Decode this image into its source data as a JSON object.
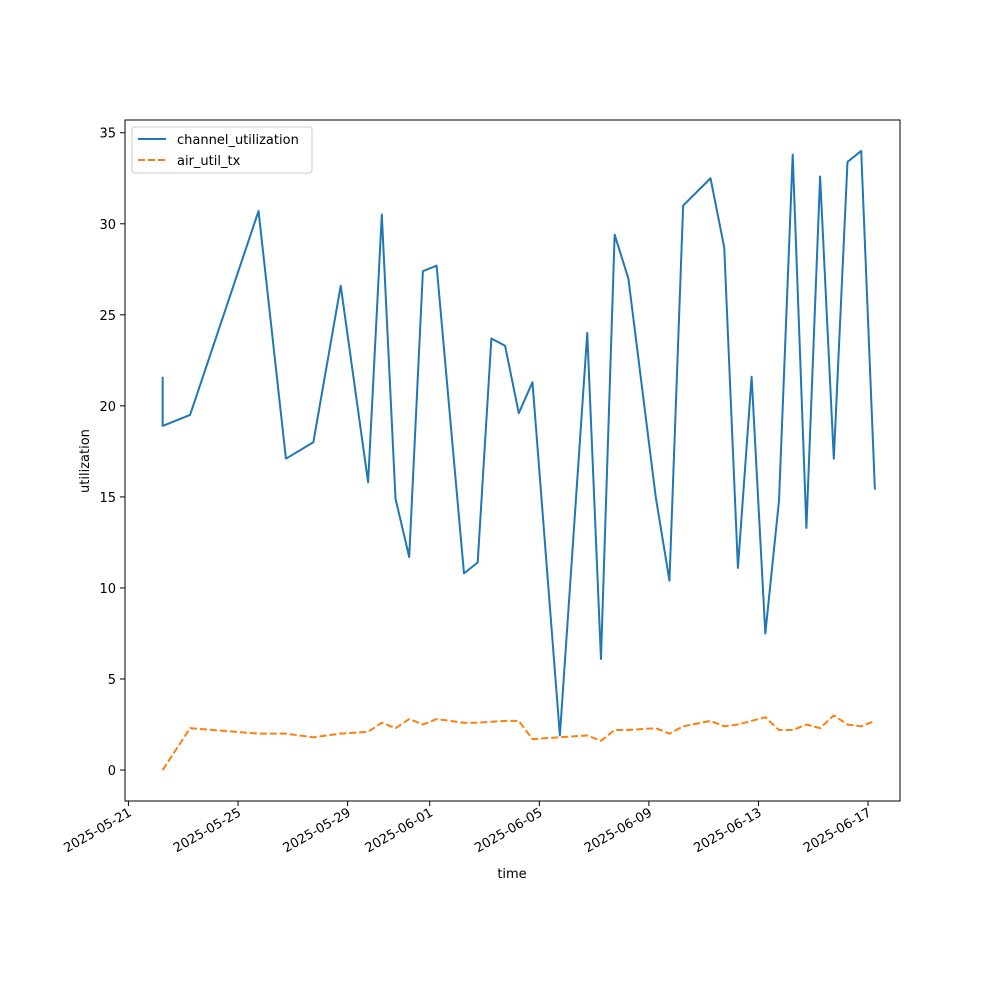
{
  "chart_data": {
    "type": "line",
    "title": "",
    "xlabel": "time",
    "ylabel": "utilization",
    "x_type": "date",
    "xlim": [
      "2025-05-20T21:00",
      "2025-06-18T04:00"
    ],
    "ylim": [
      -1.7,
      35.7
    ],
    "x_ticks": [
      "2025-05-21",
      "2025-05-25",
      "2025-05-29",
      "2025-06-01",
      "2025-06-05",
      "2025-06-09",
      "2025-06-13",
      "2025-06-17"
    ],
    "y_ticks": [
      0,
      5,
      10,
      15,
      20,
      25,
      30,
      35
    ],
    "grid": false,
    "legend_position": "upper-left",
    "series": [
      {
        "name": "channel_utilization",
        "color": "#1f77b4",
        "style": "solid",
        "points": [
          [
            "2025-05-22T06:00",
            21.6
          ],
          [
            "2025-05-22T06:00",
            18.9
          ],
          [
            "2025-05-23T06:00",
            19.5
          ],
          [
            "2025-05-25T18:00",
            30.7
          ],
          [
            "2025-05-26T18:00",
            17.1
          ],
          [
            "2025-05-27T18:00",
            18.0
          ],
          [
            "2025-05-28T18:00",
            26.6
          ],
          [
            "2025-05-29T18:00",
            15.8
          ],
          [
            "2025-05-30T06:00",
            30.5
          ],
          [
            "2025-05-30T18:00",
            14.9
          ],
          [
            "2025-05-31T06:00",
            11.7
          ],
          [
            "2025-05-31T18:00",
            27.4
          ],
          [
            "2025-06-01T06:00",
            27.7
          ],
          [
            "2025-06-02T06:00",
            10.8
          ],
          [
            "2025-06-02T18:00",
            11.4
          ],
          [
            "2025-06-03T06:00",
            23.7
          ],
          [
            "2025-06-03T18:00",
            23.3
          ],
          [
            "2025-06-04T06:00",
            19.6
          ],
          [
            "2025-06-04T18:00",
            21.3
          ],
          [
            "2025-06-05T18:00",
            1.9
          ],
          [
            "2025-06-06T18:00",
            24.0
          ],
          [
            "2025-06-07T06:00",
            6.1
          ],
          [
            "2025-06-07T18:00",
            29.4
          ],
          [
            "2025-06-08T06:00",
            27.0
          ],
          [
            "2025-06-09T06:00",
            15.0
          ],
          [
            "2025-06-09T18:00",
            10.4
          ],
          [
            "2025-06-10T06:00",
            31.0
          ],
          [
            "2025-06-11T06:00",
            32.5
          ],
          [
            "2025-06-11T18:00",
            28.7
          ],
          [
            "2025-06-12T06:00",
            11.1
          ],
          [
            "2025-06-12T18:00",
            21.6
          ],
          [
            "2025-06-13T06:00",
            7.5
          ],
          [
            "2025-06-13T18:00",
            14.8
          ],
          [
            "2025-06-14T06:00",
            33.8
          ],
          [
            "2025-06-14T18:00",
            13.3
          ],
          [
            "2025-06-15T06:00",
            32.6
          ],
          [
            "2025-06-15T18:00",
            17.1
          ],
          [
            "2025-06-16T06:00",
            33.4
          ],
          [
            "2025-06-16T18:00",
            34.0
          ],
          [
            "2025-06-17T06:00",
            15.4
          ]
        ]
      },
      {
        "name": "air_util_tx",
        "color": "#ff7f0e",
        "style": "dashed",
        "points": [
          [
            "2025-05-22T06:00",
            0.0
          ],
          [
            "2025-05-23T06:00",
            2.3
          ],
          [
            "2025-05-25T18:00",
            2.0
          ],
          [
            "2025-05-26T18:00",
            2.0
          ],
          [
            "2025-05-27T18:00",
            1.8
          ],
          [
            "2025-05-28T18:00",
            2.0
          ],
          [
            "2025-05-29T18:00",
            2.1
          ],
          [
            "2025-05-30T06:00",
            2.6
          ],
          [
            "2025-05-30T18:00",
            2.3
          ],
          [
            "2025-05-31T06:00",
            2.8
          ],
          [
            "2025-05-31T18:00",
            2.5
          ],
          [
            "2025-06-01T06:00",
            2.8
          ],
          [
            "2025-06-02T06:00",
            2.6
          ],
          [
            "2025-06-02T18:00",
            2.6
          ],
          [
            "2025-06-03T18:00",
            2.7
          ],
          [
            "2025-06-04T06:00",
            2.7
          ],
          [
            "2025-06-04T18:00",
            1.7
          ],
          [
            "2025-06-05T18:00",
            1.8
          ],
          [
            "2025-06-06T18:00",
            1.9
          ],
          [
            "2025-06-07T06:00",
            1.6
          ],
          [
            "2025-06-07T18:00",
            2.2
          ],
          [
            "2025-06-08T06:00",
            2.2
          ],
          [
            "2025-06-09T06:00",
            2.3
          ],
          [
            "2025-06-09T18:00",
            2.0
          ],
          [
            "2025-06-10T06:00",
            2.4
          ],
          [
            "2025-06-11T06:00",
            2.7
          ],
          [
            "2025-06-11T18:00",
            2.4
          ],
          [
            "2025-06-12T06:00",
            2.5
          ],
          [
            "2025-06-12T18:00",
            2.7
          ],
          [
            "2025-06-13T06:00",
            2.9
          ],
          [
            "2025-06-13T18:00",
            2.2
          ],
          [
            "2025-06-14T06:00",
            2.2
          ],
          [
            "2025-06-14T18:00",
            2.5
          ],
          [
            "2025-06-15T06:00",
            2.3
          ],
          [
            "2025-06-15T18:00",
            3.0
          ],
          [
            "2025-06-16T06:00",
            2.5
          ],
          [
            "2025-06-16T18:00",
            2.4
          ],
          [
            "2025-06-17T06:00",
            2.7
          ]
        ]
      }
    ]
  }
}
